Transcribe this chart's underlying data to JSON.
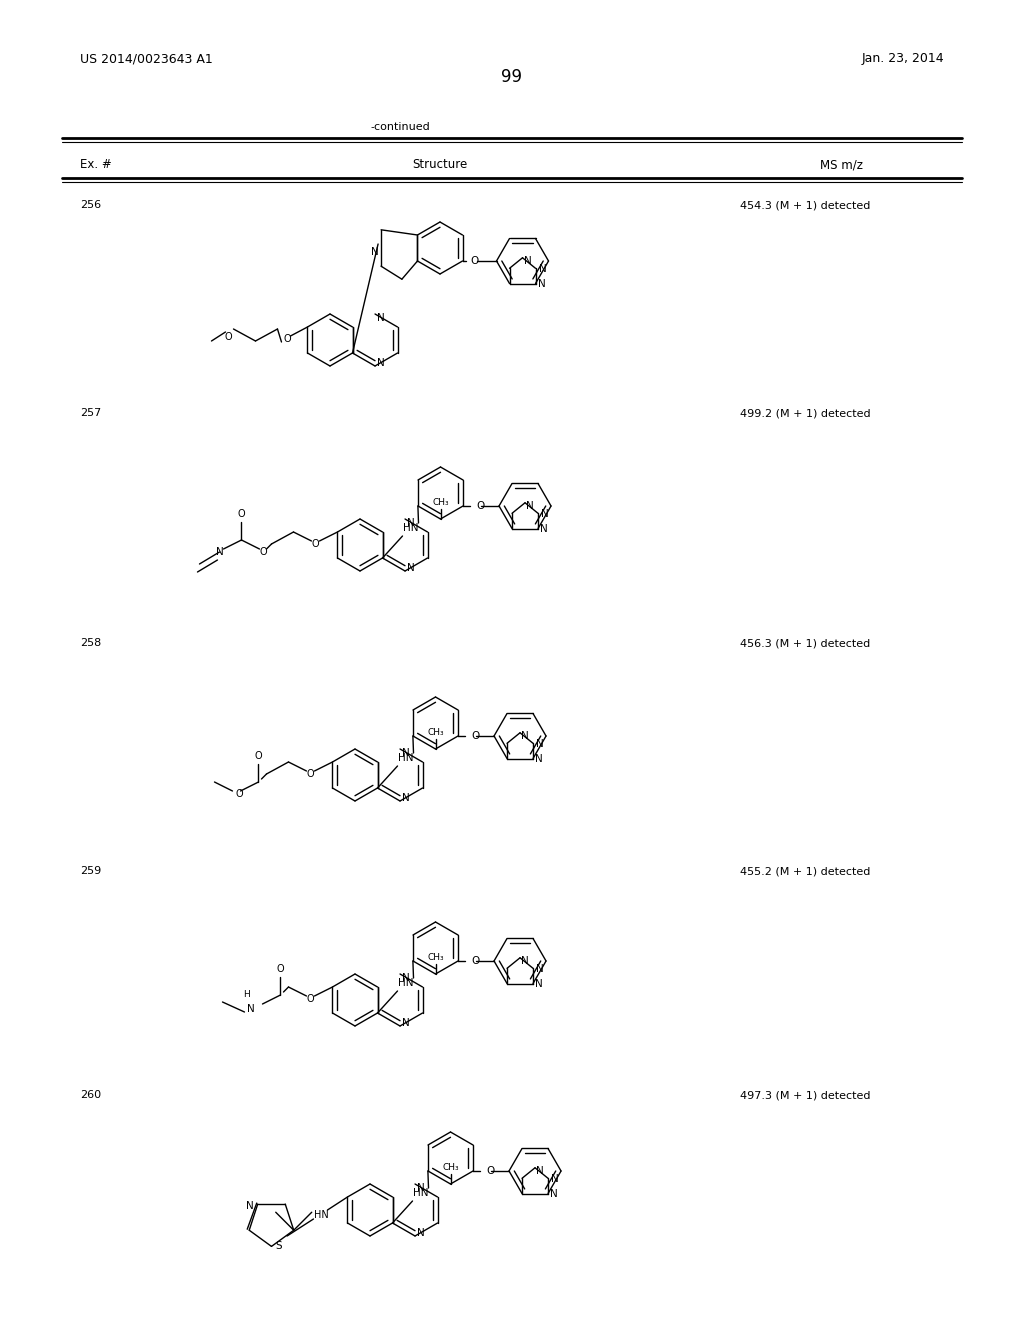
{
  "page_number": "99",
  "patent_number": "US 2014/0023643 A1",
  "patent_date": "Jan. 23, 2014",
  "continued_label": "-continued",
  "col_headers": [
    "Ex. #",
    "Structure",
    "MS m/z"
  ],
  "entries": [
    {
      "ex_num": "256",
      "ms": "454.3 (M + 1) detected"
    },
    {
      "ex_num": "257",
      "ms": "499.2 (M + 1) detected"
    },
    {
      "ex_num": "258",
      "ms": "456.3 (M + 1) detected"
    },
    {
      "ex_num": "259",
      "ms": "455.2 (M + 1) detected"
    },
    {
      "ex_num": "260",
      "ms": "497.3 (M + 1) detected"
    }
  ],
  "background_color": "#ffffff",
  "text_color": "#000000"
}
